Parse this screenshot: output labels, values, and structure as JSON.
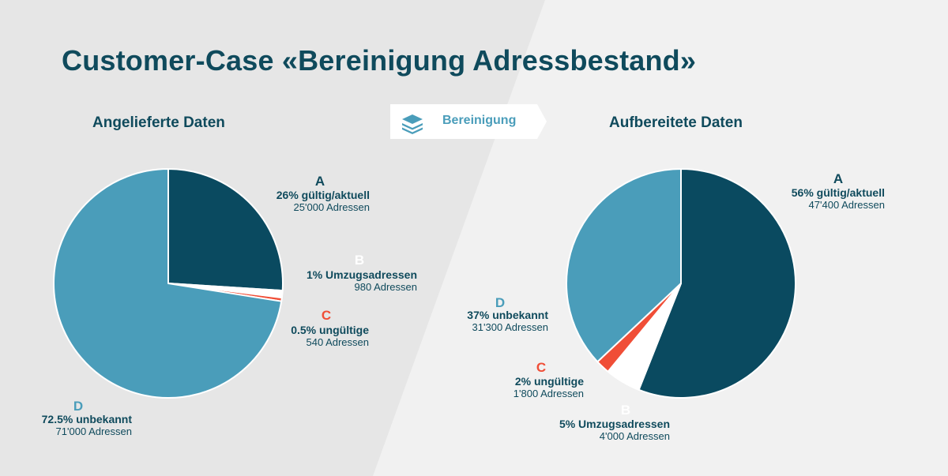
{
  "title": "Customer-Case «Bereinigung Adressbestand»",
  "process_label": "Bereinigung",
  "process_icon": "stacked-layers-icon",
  "colors": {
    "dark_teal": "#0a4a60",
    "light_teal": "#4a9dba",
    "white": "#ffffff",
    "red": "#f04e37",
    "text": "#0f4a5c"
  },
  "chart_data": [
    {
      "type": "pie",
      "title": "Angelieferte Daten",
      "slices": [
        {
          "id": "A",
          "letter": "A",
          "percent": 26,
          "label": "26% gültig/aktuell",
          "count": "25'000 Adressen",
          "color": "#0a4a60"
        },
        {
          "id": "B",
          "letter": "B",
          "percent": 1,
          "label": "1% Umzugsadressen",
          "count": "980 Adressen",
          "color": "#ffffff"
        },
        {
          "id": "C",
          "letter": "C",
          "percent": 0.5,
          "label": "0.5% ungültige",
          "count": "540 Adressen",
          "color": "#f04e37"
        },
        {
          "id": "D",
          "letter": "D",
          "percent": 72.5,
          "label": "72.5% unbekannt",
          "count": "71'000 Adressen",
          "color": "#4a9dba"
        }
      ]
    },
    {
      "type": "pie",
      "title": "Aufbereitete Daten",
      "slices": [
        {
          "id": "A",
          "letter": "A",
          "percent": 56,
          "label": "56% gültig/aktuell",
          "count": "47'400 Adressen",
          "color": "#0a4a60"
        },
        {
          "id": "B",
          "letter": "B",
          "percent": 5,
          "label": "5% Umzugsadressen",
          "count": "4'000 Adressen",
          "color": "#ffffff"
        },
        {
          "id": "C",
          "letter": "C",
          "percent": 2,
          "label": "2% ungültige",
          "count": "1'800 Adressen",
          "color": "#f04e37"
        },
        {
          "id": "D",
          "letter": "D",
          "percent": 37,
          "label": "37% unbekannt",
          "count": "31'300 Adressen",
          "color": "#4a9dba"
        }
      ]
    }
  ]
}
